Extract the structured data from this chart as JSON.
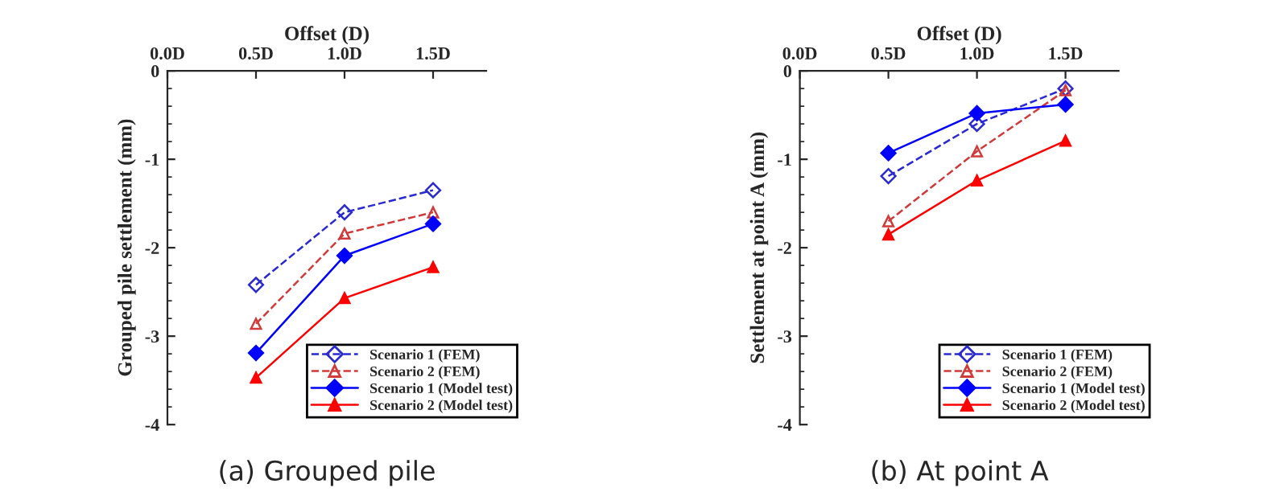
{
  "chart_data": [
    {
      "type": "line",
      "title": "(a) Grouped pile",
      "xlabel": "Offset (D)",
      "ylabel": "Grouped pile settlement (mm)",
      "x": [
        0.5,
        1.0,
        1.5
      ],
      "xlim": [
        0,
        1.8
      ],
      "xticks": [
        {
          "value": 0,
          "label": "0.0D"
        },
        {
          "value": 0.5,
          "label": "0.5D"
        },
        {
          "value": 1.0,
          "label": "1.0D"
        },
        {
          "value": 1.5,
          "label": "1.5D"
        }
      ],
      "ylim": [
        -4,
        0
      ],
      "yticks": [
        0,
        -1,
        -2,
        -3,
        -4
      ],
      "grid": false,
      "legend": "bottom right",
      "series": [
        {
          "name": "Scenario 1 (FEM)",
          "color": "#2a2ad0",
          "marker": "diamond",
          "line_style": "dashed",
          "values": [
            -2.42,
            -1.6,
            -1.35
          ]
        },
        {
          "name": "Scenario 2 (FEM)",
          "color": "#d03a3a",
          "marker": "triangle",
          "line_style": "dashed",
          "values": [
            -2.86,
            -1.84,
            -1.6
          ]
        },
        {
          "name": "Scenario 1 (Model test)",
          "color": "#0000ff",
          "marker": "diamond",
          "line_style": "solid",
          "values": [
            -3.19,
            -2.09,
            -1.73
          ]
        },
        {
          "name": "Scenario 2 (Model test)",
          "color": "#ff0000",
          "marker": "triangle",
          "line_style": "solid",
          "values": [
            -3.47,
            -2.57,
            -2.22
          ]
        }
      ]
    },
    {
      "type": "line",
      "title": "(b) At point A",
      "xlabel": "Offset (D)",
      "ylabel": "Settlement at point A (mm)",
      "x": [
        0.5,
        1.0,
        1.5
      ],
      "xlim": [
        0,
        1.8
      ],
      "xticks": [
        {
          "value": 0,
          "label": "0.0D"
        },
        {
          "value": 0.5,
          "label": "0.5D"
        },
        {
          "value": 1.0,
          "label": "1.0D"
        },
        {
          "value": 1.5,
          "label": "1.5D"
        }
      ],
      "ylim": [
        -4,
        0
      ],
      "yticks": [
        0,
        -1,
        -2,
        -3,
        -4
      ],
      "grid": false,
      "legend": "bottom right",
      "series": [
        {
          "name": "Scenario 1 (FEM)",
          "color": "#2a2ad0",
          "marker": "diamond",
          "line_style": "dashed",
          "values": [
            -1.19,
            -0.6,
            -0.2
          ]
        },
        {
          "name": "Scenario 2 (FEM)",
          "color": "#d03a3a",
          "marker": "triangle",
          "line_style": "dashed",
          "values": [
            -1.7,
            -0.91,
            -0.22
          ]
        },
        {
          "name": "Scenario 1 (Model test)",
          "color": "#0000ff",
          "marker": "diamond",
          "line_style": "solid",
          "values": [
            -0.93,
            -0.48,
            -0.38
          ]
        },
        {
          "name": "Scenario 2 (Model test)",
          "color": "#ff0000",
          "marker": "triangle",
          "line_style": "solid",
          "values": [
            -1.85,
            -1.24,
            -0.79
          ]
        }
      ]
    }
  ]
}
